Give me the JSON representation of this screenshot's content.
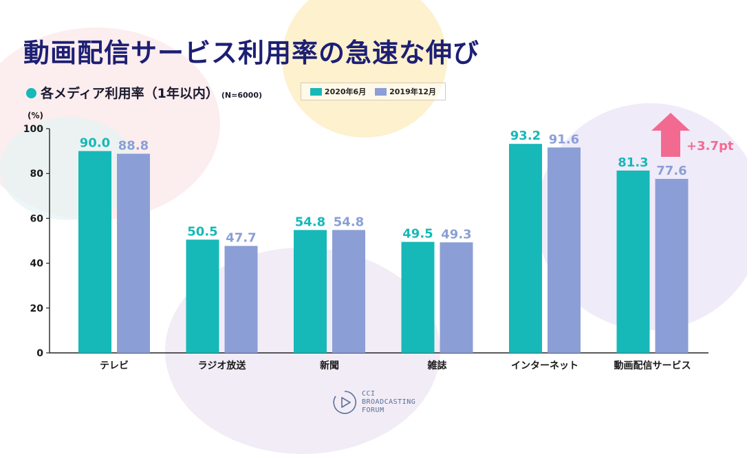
{
  "title": "動画配信サービス利用率の急速な伸び",
  "subtitle": "各メディア利用率（1年以内）",
  "sample_note": "(N=6000)",
  "unit_label": "(%)",
  "legend": [
    {
      "label": "2020年6月",
      "color": "#17b8b8"
    },
    {
      "label": "2019年12月",
      "color": "#8b9fd6"
    }
  ],
  "annotation": {
    "text": "+3.7pt",
    "color": "#f36a91",
    "arrow_icon": "up-arrow-icon"
  },
  "logo": {
    "line1": "CCI",
    "line2": "BROADCASTING",
    "line3": "FORUM"
  },
  "chart_data": {
    "type": "bar",
    "categories": [
      "テレビ",
      "ラジオ放送",
      "新聞",
      "雑誌",
      "インターネット",
      "動画配信サービス"
    ],
    "series": [
      {
        "name": "2020年6月",
        "values": [
          90.0,
          50.5,
          54.8,
          49.5,
          93.2,
          81.3
        ],
        "color": "#17b8b8"
      },
      {
        "name": "2019年12月",
        "values": [
          88.8,
          47.7,
          54.8,
          49.3,
          91.6,
          77.6
        ],
        "color": "#8b9fd6"
      }
    ],
    "ylim": [
      0,
      100
    ],
    "yticks": [
      0,
      20,
      40,
      60,
      80,
      100
    ],
    "value_labels": [
      [
        "90.0",
        "50.5",
        "54.8",
        "49.5",
        "93.2",
        "81.3"
      ],
      [
        "88.8",
        "47.7",
        "54.8",
        "49.3",
        "91.6",
        "77.6"
      ]
    ],
    "grid": false,
    "legend_position": "top"
  }
}
